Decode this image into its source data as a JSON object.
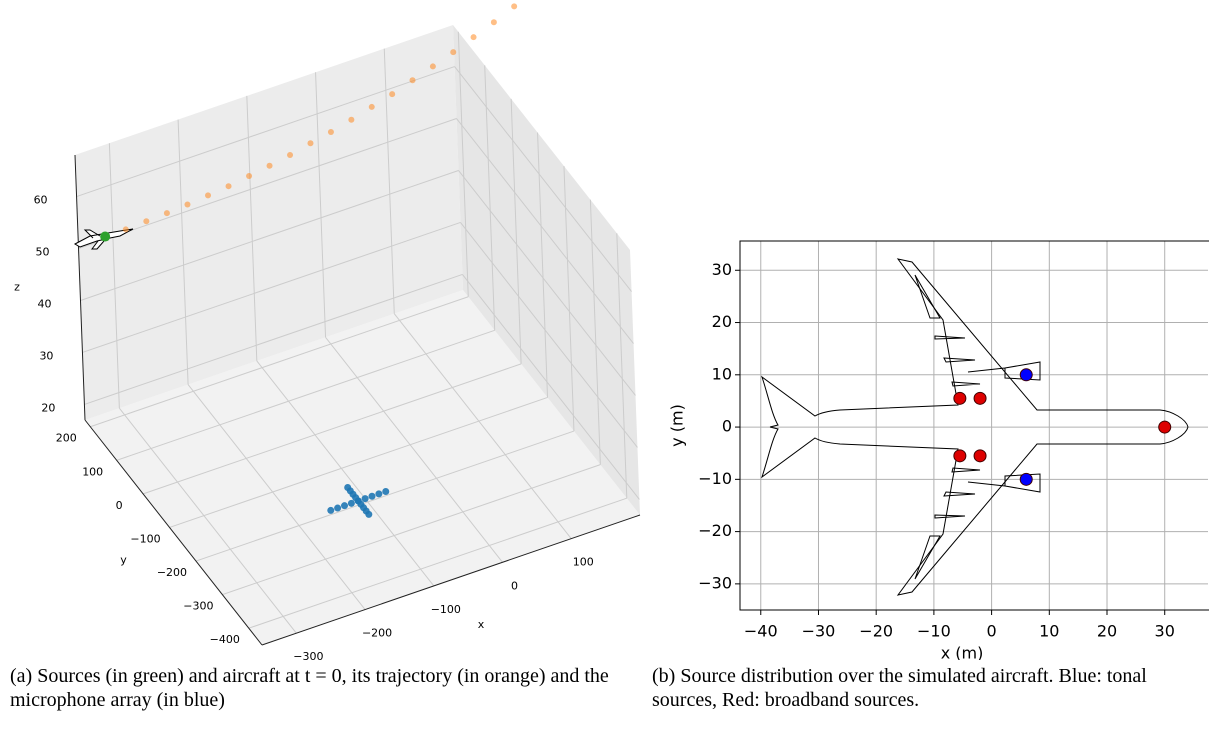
{
  "chart_data": [
    {
      "type": "scatter3d",
      "caption": "(a) Sources (in green) and aircraft at t = 0, its trajectory (in orange) and the microphone array (in blue)",
      "xlabel": "x",
      "ylabel": "y",
      "zlabel": "z",
      "xlim": [
        -350,
        200
      ],
      "ylim": [
        -450,
        220
      ],
      "zlim": [
        17,
        68
      ],
      "xticks": [
        {
          "value": -300,
          "label": "−300"
        },
        {
          "value": -200,
          "label": "−200"
        },
        {
          "value": -100,
          "label": "−100"
        },
        0,
        100
      ],
      "yticks": [
        {
          "value": -400,
          "label": "−400"
        },
        {
          "value": -300,
          "label": "−300"
        },
        {
          "value": -200,
          "label": "−200"
        },
        {
          "value": -100,
          "label": "−100"
        },
        0,
        100,
        200
      ],
      "zticks": [
        20,
        30,
        40,
        50,
        60
      ],
      "grid": true,
      "series": [
        {
          "color": "#ff7f0e",
          "x": [
            -331,
            -301,
            -271,
            -241,
            -211,
            -181,
            -151,
            -121,
            -91,
            -61,
            -31,
            -1,
            29,
            59,
            89,
            119,
            149,
            179,
            209,
            239,
            269
          ],
          "y": [
            165,
            165,
            165,
            165,
            165,
            165,
            165,
            165,
            165,
            165,
            165,
            165,
            165,
            165,
            165,
            165,
            165,
            165,
            165,
            165,
            165
          ],
          "z": [
            55,
            55,
            55.2,
            55.4,
            55.7,
            56.1,
            56.5,
            57.1,
            57.7,
            58.4,
            59.3,
            60.1,
            61.1,
            62.2,
            63.3,
            64.6,
            65.9,
            67.3,
            68.8,
            70.3,
            72
          ]
        },
        {
          "color": "#2ca02c",
          "x": [
            -331
          ],
          "y": [
            165
          ],
          "z": [
            55
          ]
        },
        {
          "color": "#1f77b4",
          "x": [
            -150,
            -140,
            -130,
            -120,
            -110,
            -100,
            -90,
            -80,
            -70,
            -110,
            -110,
            -110,
            -110,
            -110,
            -110,
            -110,
            -110,
            -110
          ],
          "y": [
            -190,
            -190,
            -190,
            -190,
            -190,
            -190,
            -190,
            -190,
            -190,
            -230,
            -220,
            -210,
            -200,
            -190,
            -180,
            -170,
            -160,
            -150
          ],
          "z": [
            17,
            17,
            17,
            17,
            17,
            17,
            17,
            17,
            17,
            17,
            17,
            17,
            17,
            17,
            17,
            17,
            17,
            17
          ]
        }
      ]
    },
    {
      "type": "scatter",
      "caption": "(b) Source distribution over the simulated aircraft. Blue: tonal sources, Red: broadband sources.",
      "xlabel": "x (m)",
      "ylabel": "y (m)",
      "xlim": [
        -43.6,
        37.5
      ],
      "ylim": [
        -35,
        35.6
      ],
      "xticks": [
        {
          "value": -40,
          "label": "−40"
        },
        {
          "value": -30,
          "label": "−30"
        },
        {
          "value": -20,
          "label": "−20"
        },
        {
          "value": -10,
          "label": "−10"
        },
        0,
        10,
        20,
        30
      ],
      "yticks": [
        {
          "value": -30,
          "label": "−30"
        },
        {
          "value": -20,
          "label": "−20"
        },
        {
          "value": -10,
          "label": "−10"
        },
        0,
        10,
        20,
        30
      ],
      "grid": true,
      "series": [
        {
          "color": "#0000ff",
          "x": [
            6,
            6
          ],
          "y": [
            10,
            -10
          ]
        },
        {
          "color": "#dd0000",
          "x": [
            -5.5,
            -2,
            -5.5,
            -2,
            30
          ],
          "y": [
            5.5,
            5.5,
            -5.5,
            -5.5,
            0
          ]
        }
      ]
    }
  ]
}
